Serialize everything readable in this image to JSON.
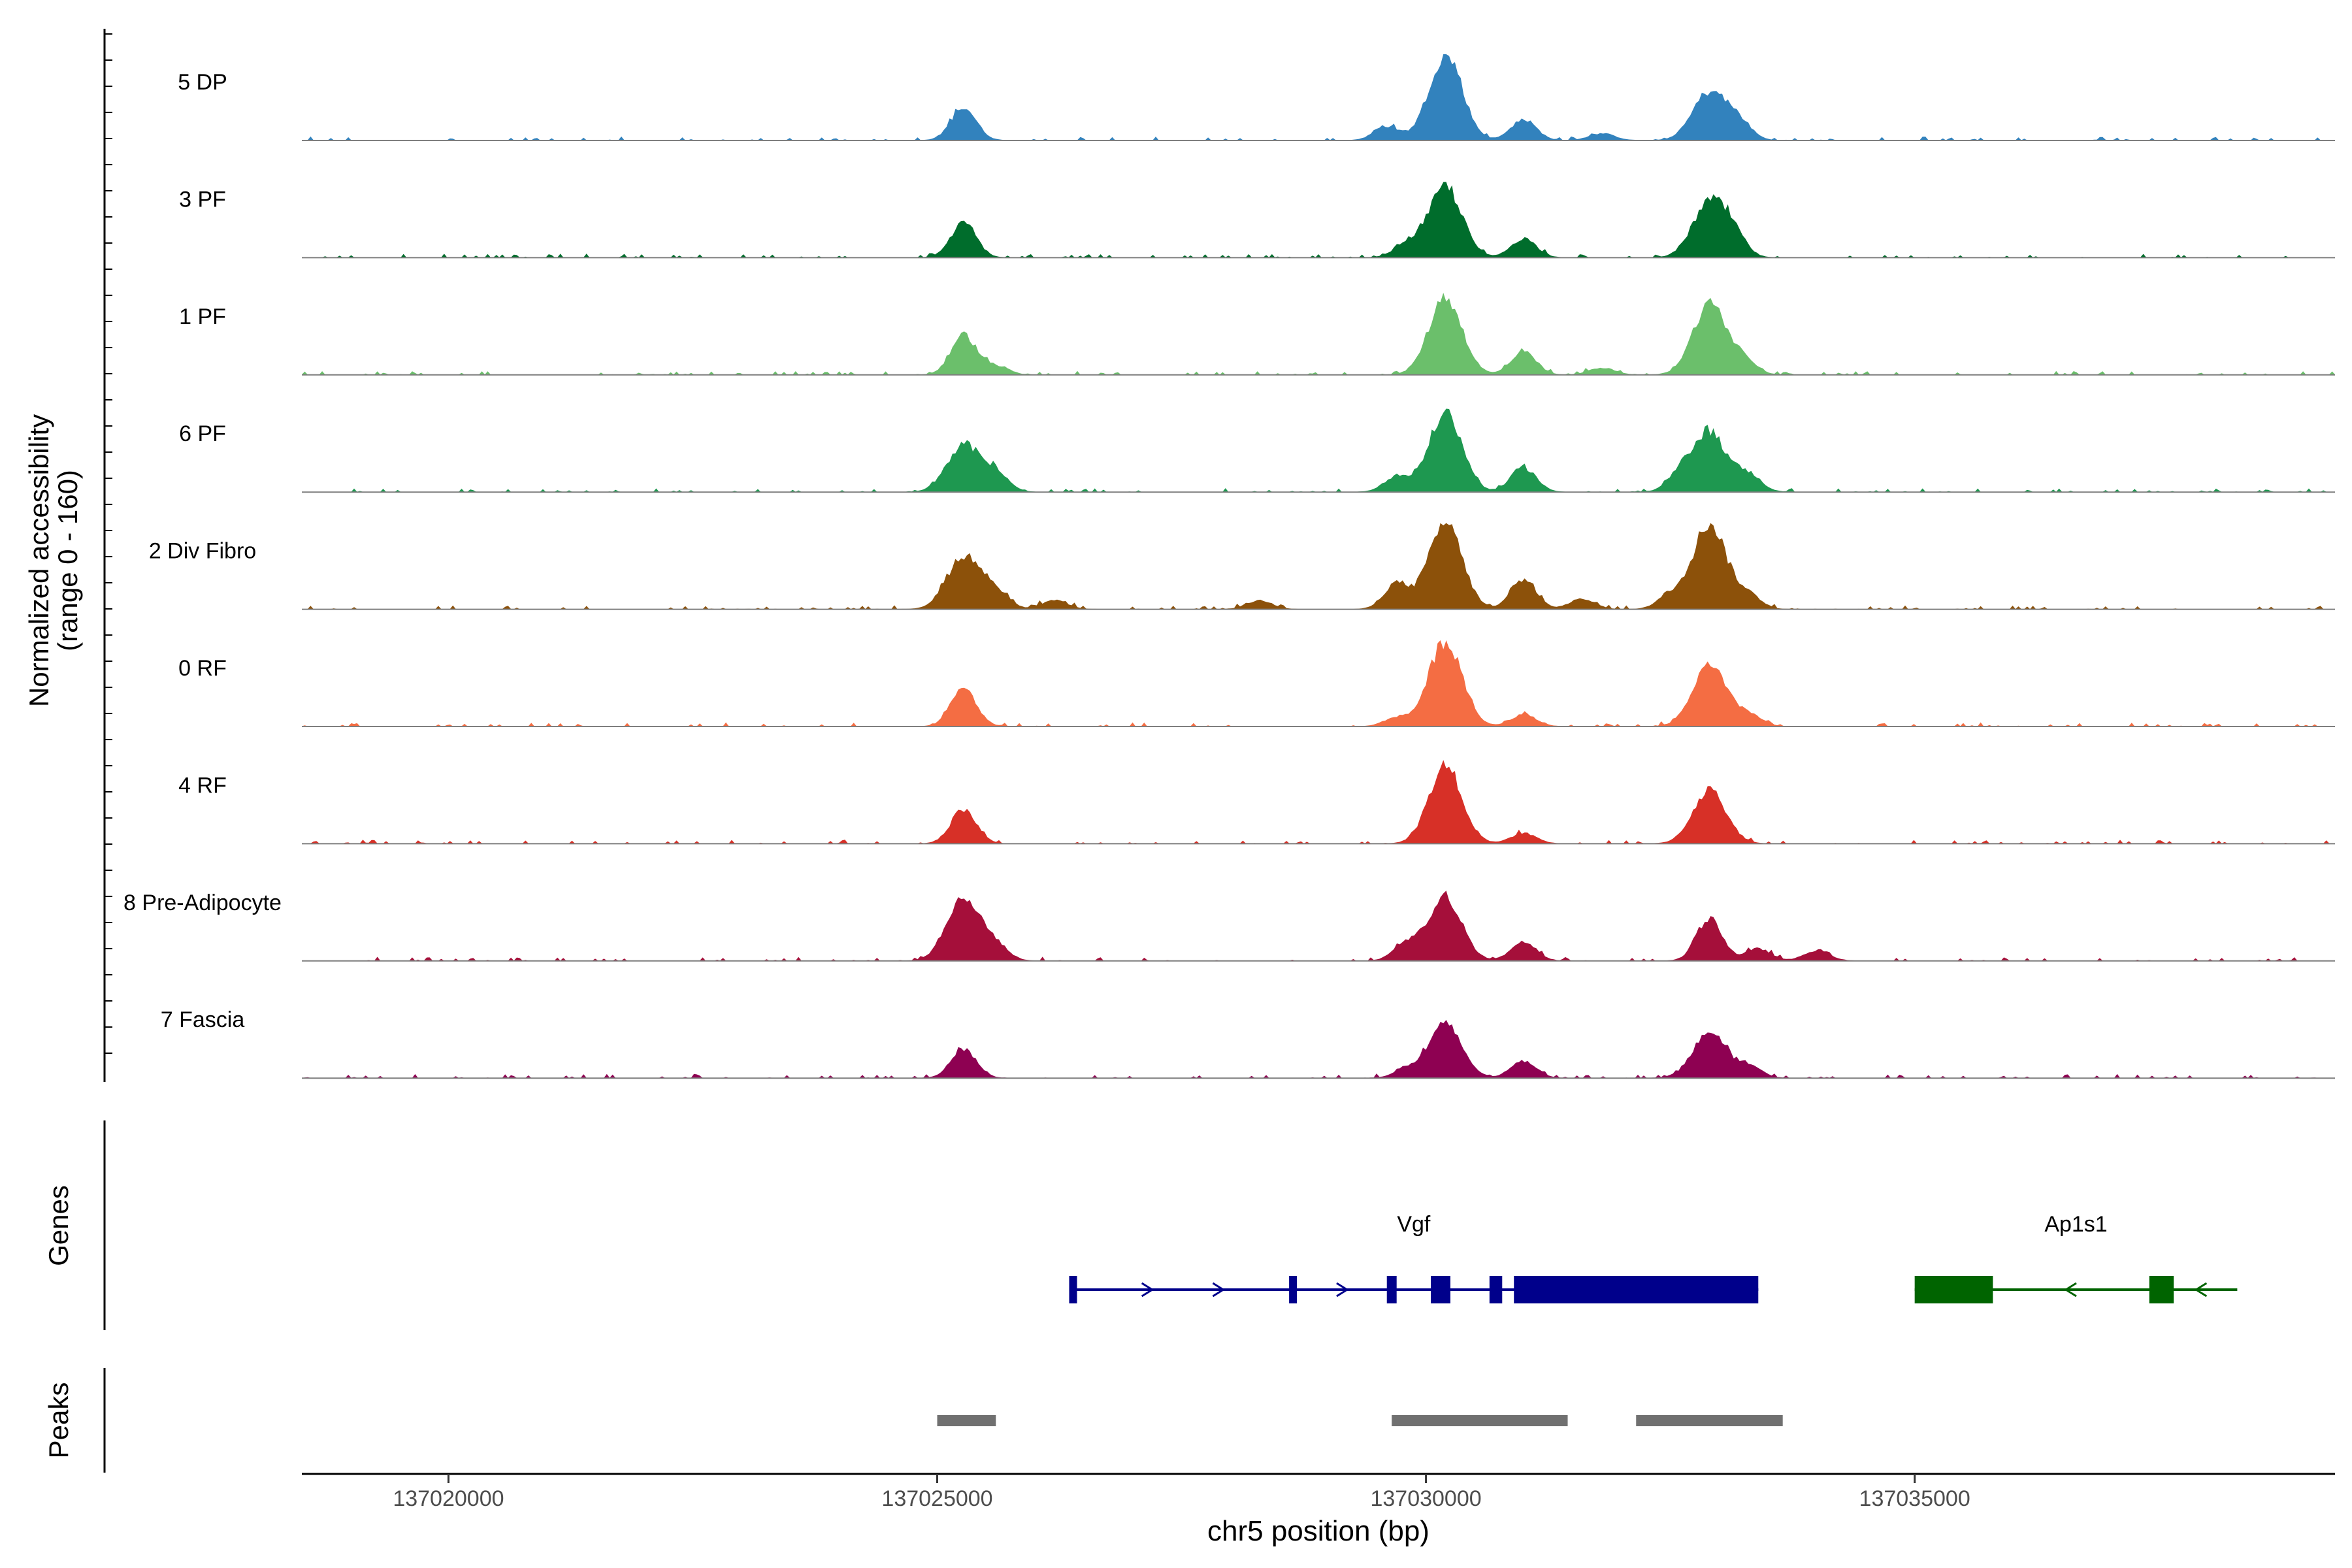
{
  "chart_data": {
    "type": "area",
    "xlabel": "chr5 position (bp)",
    "ylabel": "Normalized accessibility",
    "ylabel_range": "(range 0 - 160)",
    "y_range": [
      0,
      160
    ],
    "xlim": [
      137018500,
      137039300
    ],
    "x_ticks": [
      137020000,
      137025000,
      137030000,
      137035000
    ],
    "x_tick_labels": [
      "137020000",
      "137025000",
      "137030000",
      "137035000"
    ],
    "tracks": [
      {
        "name": "5 DP",
        "color": "#3282BD",
        "peaks": [
          [
            137025270,
            0.38
          ],
          [
            137029600,
            0.16
          ],
          [
            137030200,
            1.0
          ],
          [
            137031000,
            0.24
          ],
          [
            137031800,
            0.08
          ],
          [
            137032900,
            0.56
          ],
          [
            137033200,
            0.2
          ]
        ]
      },
      {
        "name": "3 PF",
        "color": "#006D2C",
        "peaks": [
          [
            137025270,
            0.4
          ],
          [
            137029800,
            0.16
          ],
          [
            137030200,
            0.82
          ],
          [
            137031000,
            0.22
          ],
          [
            137032900,
            0.64
          ],
          [
            137033150,
            0.2
          ]
        ]
      },
      {
        "name": "1 PF",
        "color": "#6BBF6B",
        "peaks": [
          [
            137025270,
            0.46
          ],
          [
            137025600,
            0.1
          ],
          [
            137030200,
            0.9
          ],
          [
            137031000,
            0.26
          ],
          [
            137031800,
            0.08
          ],
          [
            137032900,
            0.82
          ],
          [
            137033250,
            0.16
          ]
        ]
      },
      {
        "name": "6 PF",
        "color": "#1E9850",
        "peaks": [
          [
            137025270,
            0.55
          ],
          [
            137025600,
            0.2
          ],
          [
            137029700,
            0.18
          ],
          [
            137030200,
            0.92
          ],
          [
            137031000,
            0.28
          ],
          [
            137032600,
            0.18
          ],
          [
            137032900,
            0.7
          ],
          [
            137033300,
            0.2
          ]
        ]
      },
      {
        "name": "2 Div Fibro",
        "color": "#8C510A",
        "peaks": [
          [
            137025270,
            0.62
          ],
          [
            137025600,
            0.2
          ],
          [
            137026200,
            0.1
          ],
          [
            137028300,
            0.1
          ],
          [
            137029700,
            0.3
          ],
          [
            137030200,
            1.0
          ],
          [
            137031000,
            0.34
          ],
          [
            137031600,
            0.12
          ],
          [
            137032500,
            0.16
          ],
          [
            137032900,
            1.0
          ],
          [
            137033300,
            0.16
          ]
        ]
      },
      {
        "name": "0 RF",
        "color": "#F46D43",
        "peaks": [
          [
            137025270,
            0.44
          ],
          [
            137029700,
            0.1
          ],
          [
            137030200,
            1.0
          ],
          [
            137031000,
            0.14
          ],
          [
            137032900,
            0.7
          ],
          [
            137033300,
            0.14
          ]
        ]
      },
      {
        "name": "4 RF",
        "color": "#D73027",
        "peaks": [
          [
            137025270,
            0.4
          ],
          [
            137030200,
            0.9
          ],
          [
            137031000,
            0.12
          ],
          [
            137032900,
            0.62
          ]
        ]
      },
      {
        "name": "8 Pre-Adipocyte",
        "color": "#A50F3A",
        "peaks": [
          [
            137025270,
            0.72
          ],
          [
            137025600,
            0.16
          ],
          [
            137029800,
            0.2
          ],
          [
            137030200,
            0.72
          ],
          [
            137031000,
            0.22
          ],
          [
            137032900,
            0.5
          ],
          [
            137033400,
            0.14
          ],
          [
            137034000,
            0.12
          ]
        ]
      },
      {
        "name": "7 Fascia",
        "color": "#8E0152",
        "peaks": [
          [
            137025270,
            0.34
          ],
          [
            137029800,
            0.1
          ],
          [
            137030200,
            0.62
          ],
          [
            137031000,
            0.2
          ],
          [
            137032900,
            0.52
          ],
          [
            137033300,
            0.14
          ]
        ]
      }
    ],
    "genes_label": "Genes",
    "peaks_label": "Peaks",
    "genes": [
      {
        "name": "Vgf",
        "strand": "+",
        "color": "#00008B",
        "start": 137026350,
        "end": 137033400,
        "exons": [
          [
            137026350,
            137026420
          ],
          [
            137028600,
            137028680
          ],
          [
            137029600,
            137029700
          ],
          [
            137030050,
            137030250
          ],
          [
            137030650,
            137030780
          ],
          [
            137030900,
            137033400
          ]
        ]
      },
      {
        "name": "Ap1s1",
        "strand": "-",
        "color": "#006400",
        "start": 137035000,
        "end": 137038300,
        "exons": [
          [
            137035000,
            137035800
          ],
          [
            137037400,
            137037650
          ]
        ]
      }
    ],
    "peak_regions": [
      [
        137025000,
        137025600
      ],
      [
        137029650,
        137031450
      ],
      [
        137032150,
        137033650
      ]
    ]
  }
}
